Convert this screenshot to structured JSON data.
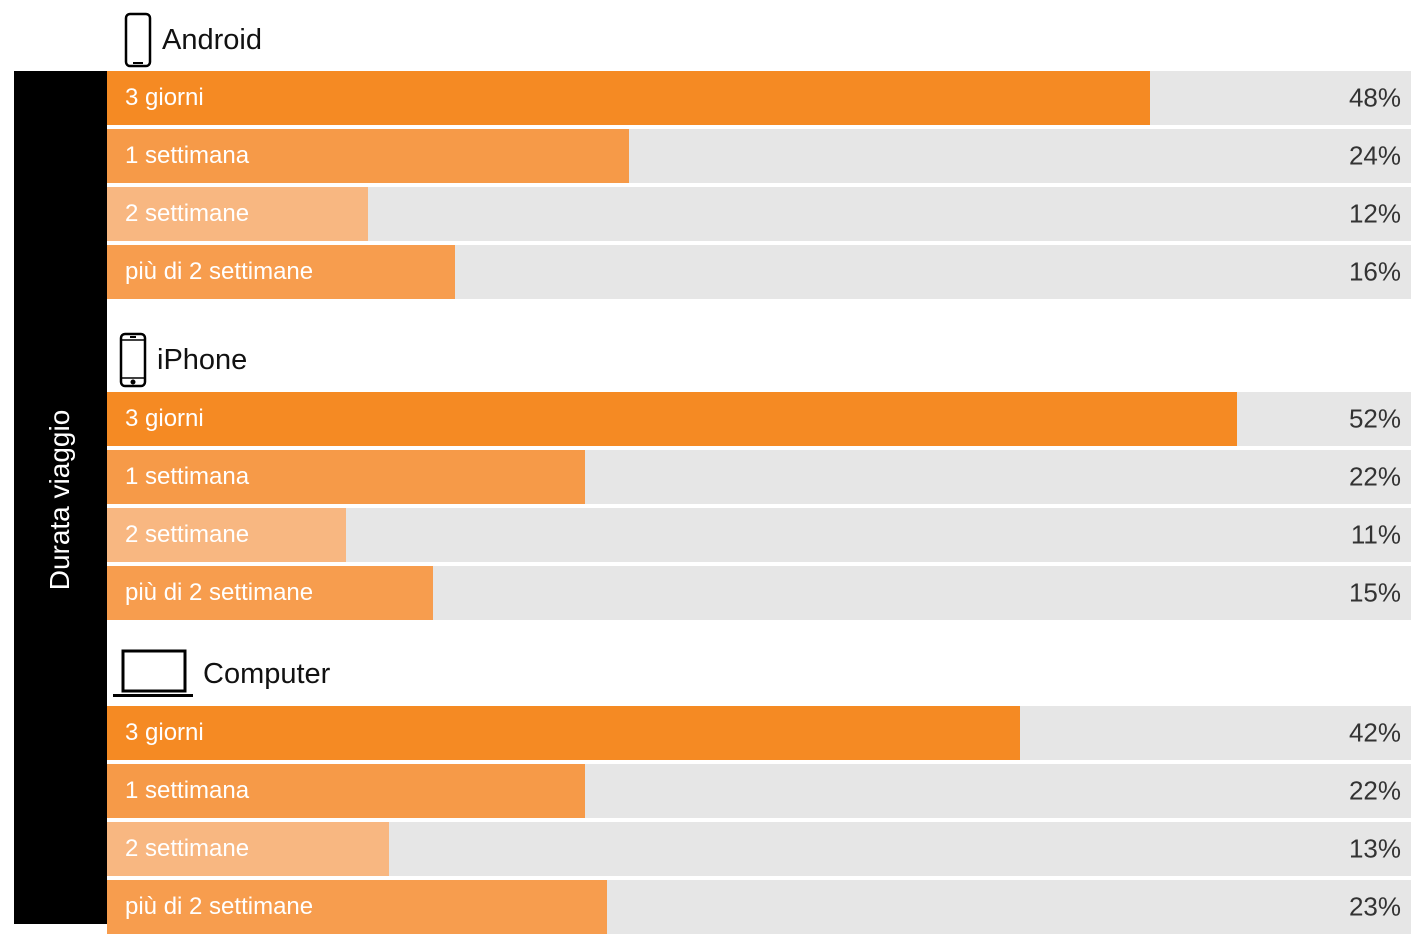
{
  "side_label": "Durata viaggio",
  "colors": {
    "c1": "#f58a23",
    "c2": "#f69a48",
    "c3": "#f8b781",
    "c4": "#f79d4e",
    "track": "#e6e6e6"
  },
  "chart_data": [
    {
      "type": "bar",
      "title": "Android",
      "icon": "smartphone-icon",
      "categories": [
        "3 giorni",
        "1 settimana",
        "2 settimane",
        "più di 2 settimane"
      ],
      "values": [
        48,
        24,
        12,
        16
      ],
      "labels": [
        "48%",
        "24%",
        "12%",
        "16%"
      ],
      "unit": "%"
    },
    {
      "type": "bar",
      "title": "iPhone",
      "icon": "iphone-icon",
      "categories": [
        "3 giorni",
        "1 settimana",
        "2 settimane",
        "più di 2 settimane"
      ],
      "values": [
        52,
        22,
        11,
        15
      ],
      "labels": [
        "52%",
        "22%",
        "11%",
        "15%"
      ],
      "unit": "%"
    },
    {
      "type": "bar",
      "title": "Computer",
      "icon": "laptop-icon",
      "categories": [
        "3 giorni",
        "1 settimana",
        "2 settimane",
        "più di 2 settimane"
      ],
      "values": [
        42,
        22,
        13,
        23
      ],
      "labels": [
        "42%",
        "22%",
        "13%",
        "23%"
      ],
      "unit": "%"
    }
  ]
}
